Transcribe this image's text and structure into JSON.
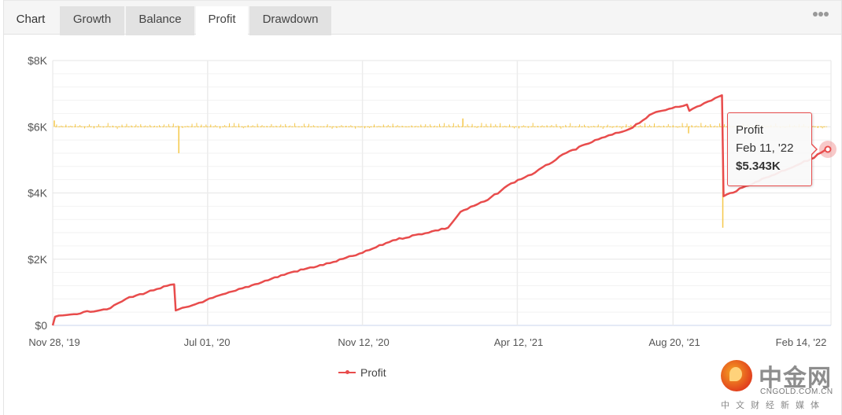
{
  "tabs": {
    "title": "Chart",
    "items": [
      {
        "label": "Growth",
        "active": false
      },
      {
        "label": "Balance",
        "active": false
      },
      {
        "label": "Profit",
        "active": true
      },
      {
        "label": "Drawdown",
        "active": false
      }
    ],
    "more_icon": "ellipsis-icon"
  },
  "tooltip": {
    "series": "Profit",
    "date": "Feb 11, '22",
    "value": "$5.343K"
  },
  "legend": {
    "label": "Profit",
    "color": "#e84c4c"
  },
  "watermark": {
    "cn": "中金网",
    "en": "CNGOLD.COM.CN",
    "sub": "中文财经新媒体"
  },
  "colors": {
    "profit_line": "#e84c4c",
    "secondary_bars": "#f5c84a",
    "grid": "#ececec",
    "axis": "#c9d4ec"
  },
  "chart_data": {
    "type": "line",
    "title": "",
    "xlabel": "",
    "ylabel": "",
    "ylim": [
      0,
      8000
    ],
    "y_ticks": [
      "$0",
      "$2K",
      "$4K",
      "$6K",
      "$8K"
    ],
    "y_tick_values": [
      0,
      2000,
      4000,
      6000,
      8000
    ],
    "x_ticks": [
      "Nov 28, '19",
      "Jul 01, '20",
      "Nov 12, '20",
      "Apr 12, '21",
      "Aug 20, '21",
      "Feb 14, '22"
    ],
    "grid": true,
    "legend_position": "bottom",
    "series": [
      {
        "name": "Profit",
        "color": "#e84c4c",
        "x_frac": [
          0,
          0.003,
          0.023,
          0.074,
          0.094,
          0.134,
          0.156,
          0.158,
          0.175,
          0.197,
          0.235,
          0.306,
          0.356,
          0.398,
          0.437,
          0.508,
          0.524,
          0.559,
          0.589,
          0.62,
          0.66,
          0.701,
          0.741,
          0.771,
          0.8,
          0.815,
          0.818,
          0.842,
          0.86,
          0.862,
          0.903,
          0.974,
          0.996
        ],
        "values": [
          0,
          260,
          330,
          520,
          800,
          1100,
          1240,
          450,
          570,
          760,
          1050,
          1600,
          1880,
          2190,
          2570,
          2950,
          3430,
          3790,
          4290,
          4620,
          5210,
          5620,
          5930,
          6400,
          6600,
          6670,
          6480,
          6760,
          6950,
          3900,
          4330,
          5020,
          5343
        ]
      }
    ],
    "secondary_series": {
      "name": "per-trade bars (unlabeled)",
      "color": "#f5c84a",
      "baseline": 6000,
      "notable_spikes": [
        {
          "x_frac": 0.162,
          "value": 5200
        },
        {
          "x_frac": 0.527,
          "value": 6250
        },
        {
          "x_frac": 0.817,
          "value": 5800
        },
        {
          "x_frac": 0.861,
          "value": 2950
        }
      ]
    },
    "highlighted_point": {
      "date": "Feb 11, '22",
      "value": 5343
    }
  }
}
